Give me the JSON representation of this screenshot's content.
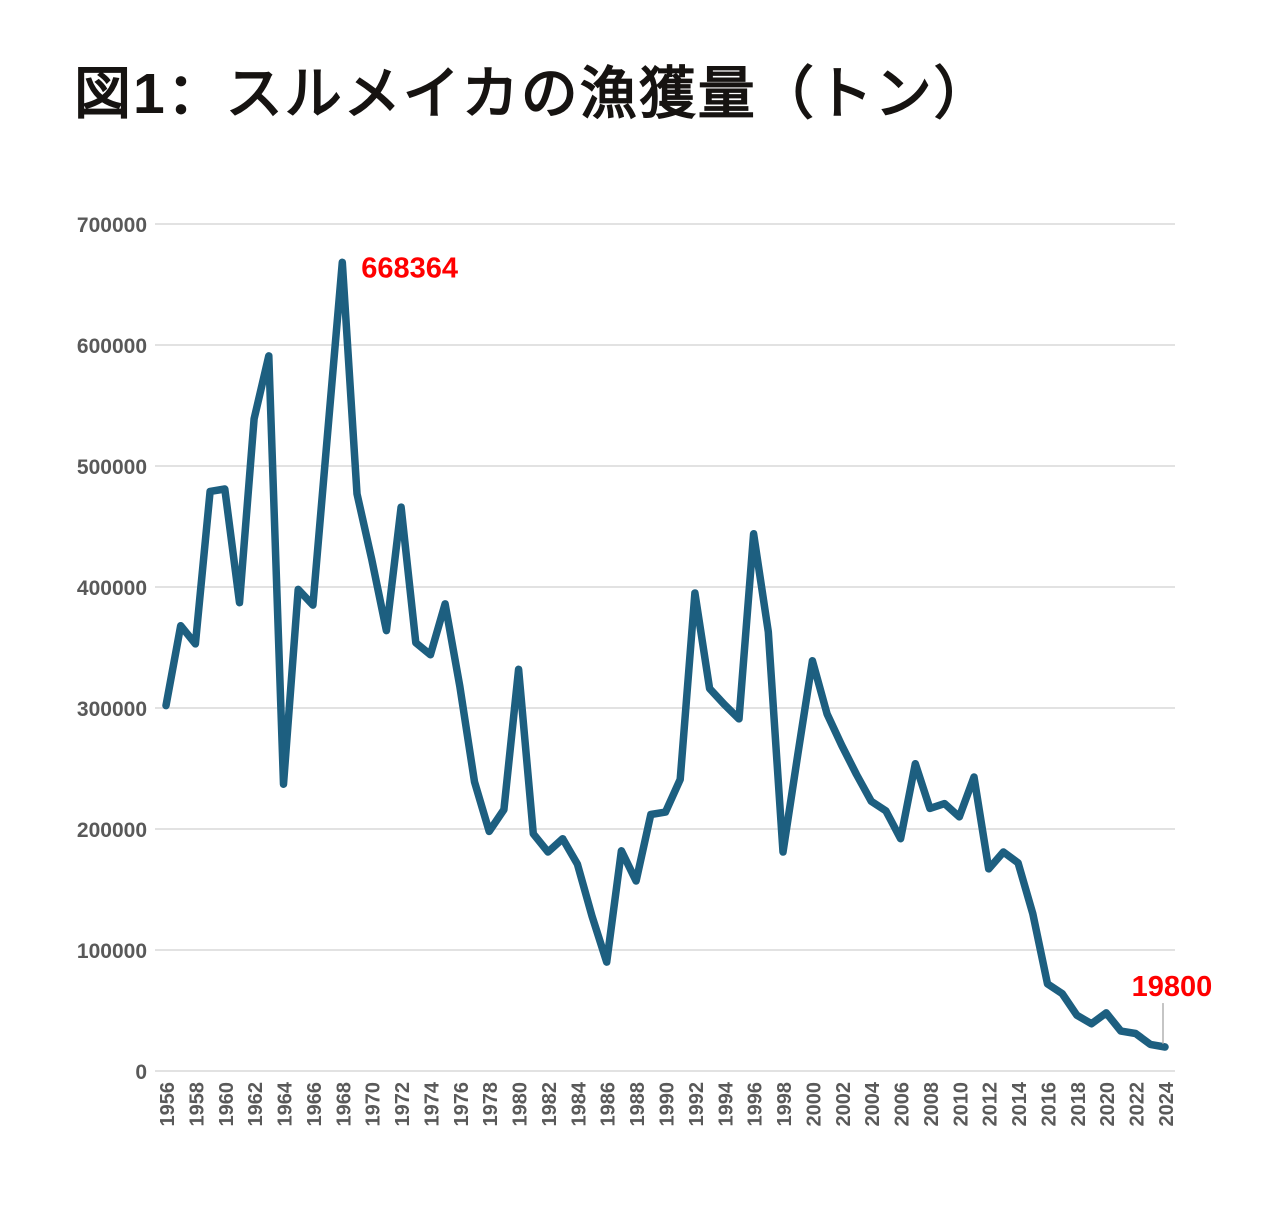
{
  "page": {
    "background": "#ffffff"
  },
  "chart_data": {
    "type": "line",
    "title": "図1：スルメイカの漁獲量（トン）",
    "series_name": "スルメイカ漁獲量（トン）",
    "x": [
      1956,
      1957,
      1958,
      1959,
      1960,
      1961,
      1962,
      1963,
      1964,
      1965,
      1966,
      1967,
      1968,
      1969,
      1970,
      1971,
      1972,
      1973,
      1974,
      1975,
      1976,
      1977,
      1978,
      1979,
      1980,
      1981,
      1982,
      1983,
      1984,
      1985,
      1986,
      1987,
      1988,
      1989,
      1990,
      1991,
      1992,
      1993,
      1994,
      1995,
      1996,
      1997,
      1998,
      1999,
      2000,
      2001,
      2002,
      2003,
      2004,
      2005,
      2006,
      2007,
      2008,
      2009,
      2010,
      2011,
      2012,
      2013,
      2014,
      2015,
      2016,
      2017,
      2018,
      2019,
      2020,
      2021,
      2022,
      2023,
      2024
    ],
    "values": [
      302000,
      368000,
      353000,
      479000,
      481000,
      387000,
      539000,
      591000,
      237000,
      398000,
      385000,
      527000,
      668364,
      477000,
      423000,
      364000,
      466000,
      354000,
      344000,
      386000,
      318000,
      239000,
      198000,
      216000,
      332000,
      196000,
      181000,
      192000,
      171000,
      128000,
      90000,
      182000,
      157000,
      212000,
      214000,
      241000,
      395000,
      316000,
      303000,
      291000,
      444000,
      363000,
      181000,
      261000,
      339000,
      295000,
      269000,
      245000,
      223000,
      215000,
      192000,
      254000,
      217000,
      221000,
      210000,
      243000,
      167000,
      181000,
      172000,
      130000,
      72000,
      64000,
      46000,
      39000,
      48000,
      33000,
      31000,
      22000,
      19800
    ],
    "ylim": [
      0,
      700000
    ],
    "ytick_step": 100000,
    "ytick_labels": [
      "0",
      "100000",
      "200000",
      "300000",
      "400000",
      "500000",
      "600000",
      "700000"
    ],
    "xtick_step": 2,
    "xtick_labels": [
      "1956",
      "1958",
      "1960",
      "1962",
      "1964",
      "1966",
      "1968",
      "1970",
      "1972",
      "1974",
      "1976",
      "1978",
      "1980",
      "1982",
      "1984",
      "1986",
      "1988",
      "1990",
      "1992",
      "1994",
      "1996",
      "1998",
      "2000",
      "2002",
      "2004",
      "2006",
      "2008",
      "2010",
      "2012",
      "2014",
      "2016",
      "2018",
      "2020",
      "2022",
      "2024"
    ],
    "grid": true,
    "legend": "none",
    "annotations": [
      {
        "x": 1968,
        "text": "668364",
        "placement": "right-of-peak"
      },
      {
        "x": 2024,
        "text": "19800",
        "placement": "above-with-leader"
      }
    ],
    "colors": {
      "line": "#1d5f80",
      "annotation": "#ff0000",
      "grid": "#d9d9d9",
      "axis_label": "#595959",
      "leader_line": "#a6a6a6",
      "title": "#161311"
    }
  }
}
